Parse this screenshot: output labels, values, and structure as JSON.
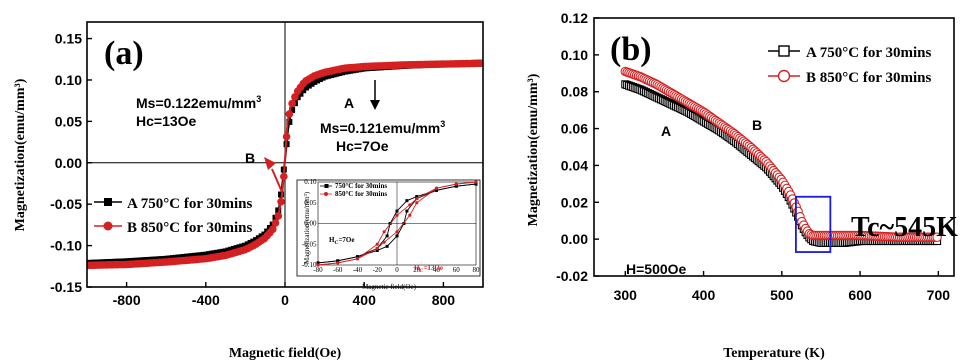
{
  "colors": {
    "black_series": "#000000",
    "red_series": "#d42020",
    "box": "#1a1adc"
  },
  "chart_data": [
    {
      "type": "line",
      "panel_label": "(a)",
      "xlabel": "Magnetic field(Oe)",
      "ylabel": "Magnetization(emu/mm³)",
      "xlim": [
        -1000,
        1000
      ],
      "ylim": [
        -0.15,
        0.17
      ],
      "x_ticks": [
        "-800",
        "-400",
        "0",
        "400",
        "800"
      ],
      "y_ticks": [
        "-0.15",
        "-0.10",
        "-0.05",
        "0.00",
        "0.05",
        "0.10",
        "0.15"
      ],
      "series": [
        {
          "name": "A 750°C for 30mins",
          "marker": "square",
          "x": [
            -1000,
            -800,
            -600,
            -400,
            -300,
            -200,
            -150,
            -100,
            -60,
            -30,
            -15,
            -7,
            0,
            7,
            15,
            30,
            60,
            100,
            150,
            200,
            300,
            400,
            600,
            800,
            1000
          ],
          "y": [
            -0.121,
            -0.119,
            -0.116,
            -0.111,
            -0.107,
            -0.1,
            -0.094,
            -0.086,
            -0.074,
            -0.055,
            -0.03,
            -0.01,
            0.003,
            0.02,
            0.04,
            0.06,
            0.078,
            0.09,
            0.098,
            0.104,
            0.11,
            0.114,
            0.117,
            0.119,
            0.121
          ]
        },
        {
          "name": "B 850°C for 30mins",
          "marker": "circle",
          "x": [
            -1000,
            -800,
            -600,
            -400,
            -300,
            -200,
            -150,
            -100,
            -60,
            -30,
            -13,
            -5,
            0,
            7,
            13,
            30,
            60,
            100,
            150,
            200,
            300,
            400,
            600,
            800,
            1000
          ],
          "y": [
            -0.122,
            -0.121,
            -0.118,
            -0.114,
            -0.11,
            -0.103,
            -0.097,
            -0.089,
            -0.078,
            -0.06,
            -0.035,
            -0.012,
            0.005,
            0.03,
            0.05,
            0.07,
            0.087,
            0.1,
            0.107,
            0.111,
            0.116,
            0.118,
            0.12,
            0.121,
            0.122
          ]
        }
      ],
      "annotations": {
        "label_a": "A",
        "label_b": "B",
        "ms_b": "Ms=0.122emu/mm",
        "hc_b": "Hc=13Oe",
        "ms_a": "Ms=0.121emu/mm",
        "hc_a": "Hc=7Oe",
        "cube": "3"
      },
      "inset": {
        "xlabel": "Magnetic field(Oe)",
        "ylabel": "Magnetization(emu/mm³)",
        "xlim": [
          -80,
          80
        ],
        "ylim": [
          -0.1,
          0.1
        ],
        "x_ticks": [
          "-80",
          "-60",
          "-40",
          "-20",
          "0",
          "20",
          "40",
          "60",
          "80"
        ],
        "y_ticks": [
          "-0.10",
          "-0.05",
          "0.00",
          "0.05",
          "0.10"
        ],
        "legend": [
          "750°C for 30mins",
          "850°C for 30mins"
        ],
        "hc_a": "H",
        "hc_a_sub": "C",
        "hc_a_val": "=7Oe",
        "hc_b": "H",
        "hc_b_sub": "C",
        "hc_b_val": "=13Oe",
        "series": [
          {
            "name": "750°C for 30mins",
            "x": [
              -80,
              -60,
              -40,
              -20,
              -10,
              -7,
              0,
              10,
              20,
              40,
              60,
              80
            ],
            "y": [
              -0.095,
              -0.09,
              -0.08,
              -0.06,
              -0.03,
              0.0,
              0.03,
              0.055,
              0.065,
              0.08,
              0.09,
              0.095
            ],
            "x2": [
              80,
              60,
              40,
              20,
              10,
              7,
              0,
              -10,
              -20,
              -40,
              -60,
              -80
            ],
            "y2": [
              0.095,
              0.09,
              0.08,
              0.06,
              0.03,
              0.0,
              -0.03,
              -0.055,
              -0.065,
              -0.08,
              -0.09,
              -0.095
            ]
          },
          {
            "name": "850°C for 30mins",
            "x": [
              -80,
              -60,
              -40,
              -20,
              -13,
              0,
              13,
              20,
              40,
              60,
              80
            ],
            "y": [
              -0.1,
              -0.095,
              -0.085,
              -0.05,
              -0.02,
              0.02,
              0.045,
              0.06,
              0.085,
              0.095,
              0.1
            ],
            "x2": [
              80,
              60,
              40,
              20,
              13,
              0,
              -13,
              -20,
              -40,
              -60,
              -80
            ],
            "y2": [
              0.1,
              0.095,
              0.085,
              0.05,
              0.02,
              -0.02,
              -0.045,
              -0.06,
              -0.085,
              -0.095,
              -0.1
            ]
          }
        ]
      }
    },
    {
      "type": "scatter",
      "panel_label": "(b)",
      "xlabel": "Temperature (K)",
      "ylabel": "Magnetization(emu/mm³)",
      "xlim": [
        260,
        720
      ],
      "ylim": [
        -0.02,
        0.12
      ],
      "x_ticks": [
        "300",
        "400",
        "500",
        "600",
        "700"
      ],
      "y_ticks": [
        "-0.02",
        "0.00",
        "0.02",
        "0.04",
        "0.06",
        "0.08",
        "0.10",
        "0.12"
      ],
      "series": [
        {
          "name": "A 750°C for 30mins",
          "marker": "square",
          "x": [
            300,
            320,
            340,
            360,
            380,
            400,
            420,
            440,
            460,
            480,
            500,
            510,
            520,
            525,
            530,
            535,
            540,
            550,
            560,
            580,
            600,
            650,
            700
          ],
          "y": [
            0.084,
            0.081,
            0.077,
            0.073,
            0.069,
            0.064,
            0.059,
            0.053,
            0.046,
            0.039,
            0.029,
            0.022,
            0.013,
            0.008,
            0.004,
            0.001,
            -0.001,
            -0.002,
            -0.002,
            -0.002,
            -0.001,
            -0.001,
            -0.001
          ]
        },
        {
          "name": "B 850°C for 30mins",
          "marker": "circle",
          "x": [
            300,
            320,
            340,
            360,
            380,
            400,
            420,
            440,
            460,
            480,
            500,
            510,
            520,
            525,
            530,
            535,
            540,
            550,
            560,
            580,
            600,
            650,
            700
          ],
          "y": [
            0.091,
            0.088,
            0.084,
            0.079,
            0.074,
            0.069,
            0.063,
            0.057,
            0.05,
            0.042,
            0.032,
            0.025,
            0.016,
            0.01,
            0.006,
            0.003,
            0.002,
            0.002,
            0.002,
            0.002,
            0.002,
            0.001,
            0.001
          ]
        }
      ],
      "annotations": {
        "label_a": "A",
        "label_b": "B",
        "tc": "Tc~545K",
        "field": "H=500Oe",
        "box_x": [
          518,
          562
        ],
        "box_y": [
          -0.007,
          0.023
        ]
      }
    }
  ]
}
